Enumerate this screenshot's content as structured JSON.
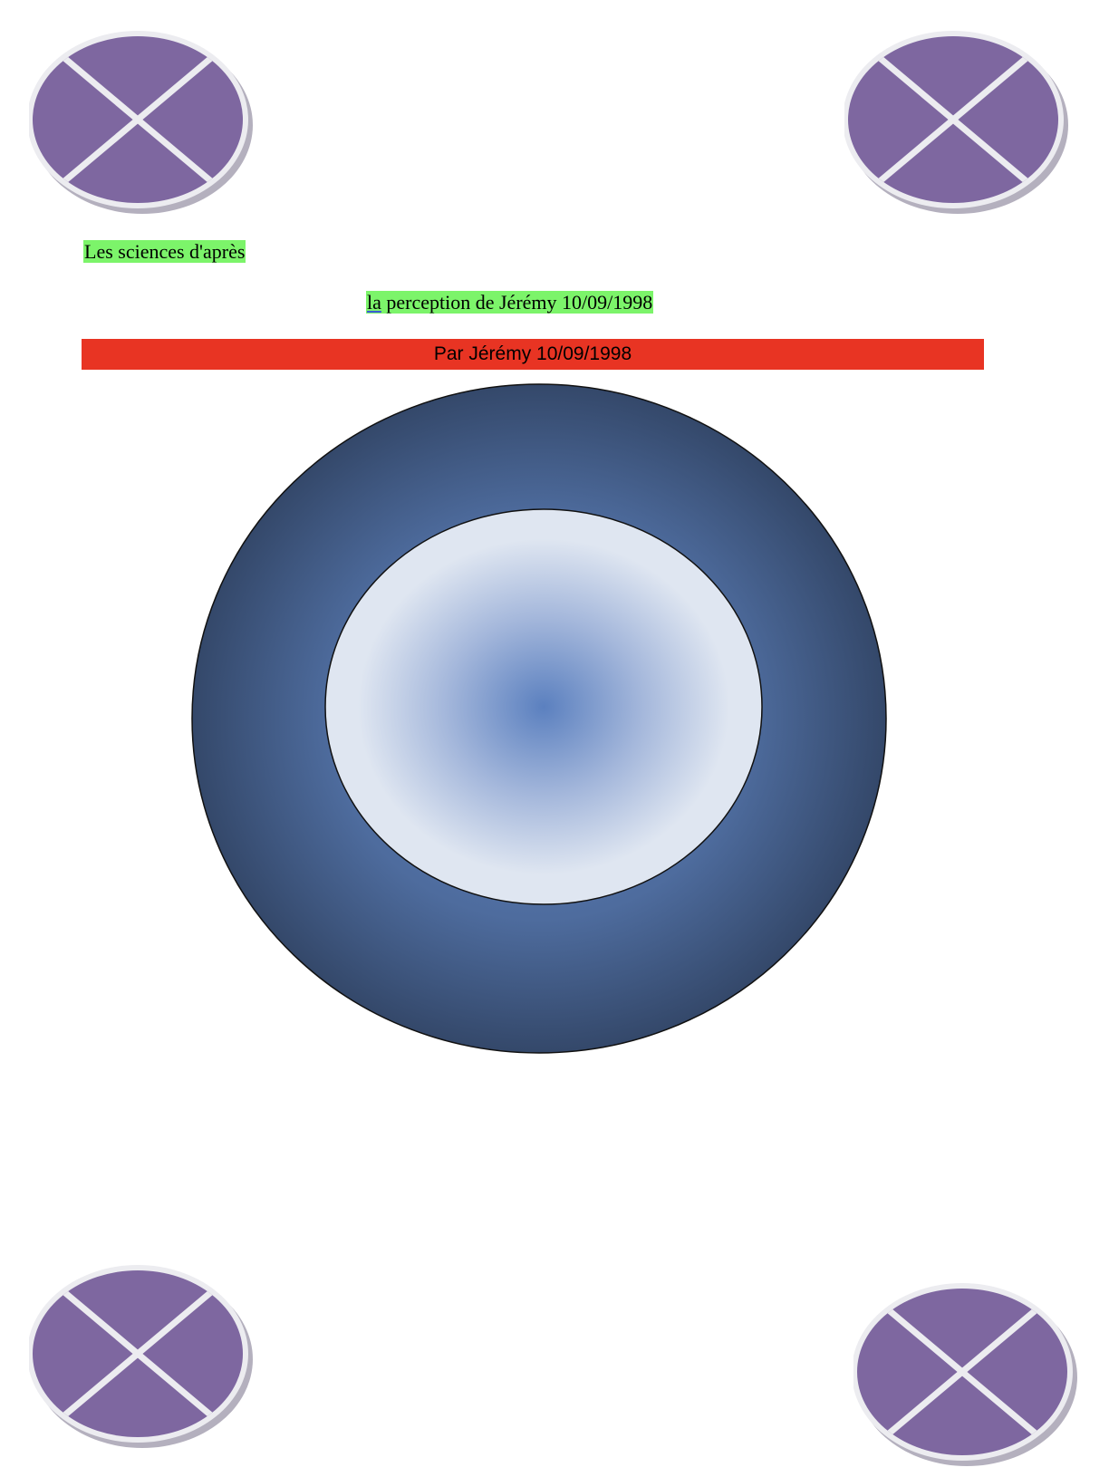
{
  "document": {
    "title_line": "Les sciences d'après",
    "subtitle": {
      "underlined_word": "la",
      "rest": " perception de Jérémy 10/09/1998"
    },
    "author_bar": "Par Jérémy 10/09/1998"
  },
  "colors": {
    "text_highlight": "#7cf46a",
    "author_bar": "#e83423",
    "corner_shape_fill": "#7e67a0",
    "corner_shape_rim": "#ececf0",
    "donut_outer_edge": "#34486a",
    "donut_outer_mid": "#4e6c9e",
    "donut_inner_center": "#5b80bf",
    "donut_inner_edge": "#dfe6f1"
  },
  "icons": {
    "corner_shape": "circle-with-cross-icon",
    "center_figure": "donut-shape"
  }
}
